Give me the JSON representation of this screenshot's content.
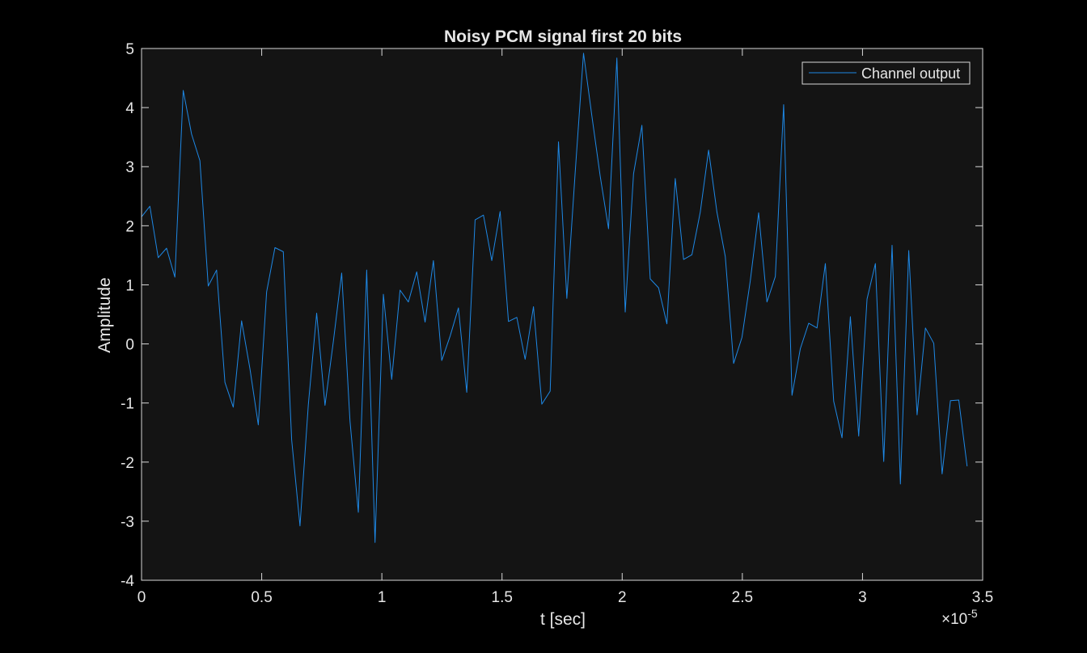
{
  "chart_data": {
    "type": "line",
    "title": "Noisy PCM signal first 20 bits",
    "xlabel": "t [sec]",
    "ylabel": "Amplitude",
    "x_exponent_label": "×10",
    "x_exponent_power": "-5",
    "x_scale": 1e-05,
    "xlim": [
      0,
      3.5
    ],
    "ylim": [
      -4,
      5
    ],
    "x_ticks": [
      0,
      0.5,
      1,
      1.5,
      2,
      2.5,
      3,
      3.5
    ],
    "x_tick_labels": [
      "0",
      "0.5",
      "1",
      "1.5",
      "2",
      "2.5",
      "3",
      "3.5"
    ],
    "y_ticks": [
      -4,
      -3,
      -2,
      -1,
      0,
      1,
      2,
      3,
      4,
      5
    ],
    "y_tick_labels": [
      "-4",
      "-3",
      "-2",
      "-1",
      "0",
      "1",
      "2",
      "3",
      "4",
      "5"
    ],
    "grid": false,
    "legend_position": "top-right",
    "colors": {
      "figure_background": "#000000",
      "axes_background": "#141414",
      "axes_edge": "#d9d9d9",
      "text": "#e6e6e6",
      "line": "#1e88e5"
    },
    "series": [
      {
        "name": "Channel output",
        "x": [
          0,
          0.0347,
          0.0694,
          0.1041,
          0.1388,
          0.1735,
          0.2082,
          0.2429,
          0.2776,
          0.3123,
          0.347,
          0.3817,
          0.4164,
          0.4511,
          0.4858,
          0.5205,
          0.5552,
          0.5899,
          0.6246,
          0.6593,
          0.694,
          0.7287,
          0.7634,
          0.7981,
          0.8328,
          0.8675,
          0.9022,
          0.9369,
          0.9716,
          1.0063,
          1.041,
          1.0757,
          1.1104,
          1.1451,
          1.1798,
          1.2145,
          1.2492,
          1.2839,
          1.3186,
          1.3533,
          1.388,
          1.4227,
          1.4574,
          1.4921,
          1.5268,
          1.5615,
          1.5962,
          1.6309,
          1.6656,
          1.7003,
          1.735,
          1.7697,
          1.8044,
          1.8391,
          1.8738,
          1.9085,
          1.9432,
          1.9779,
          2.0126,
          2.0473,
          2.082,
          2.1167,
          2.1514,
          2.1861,
          2.2208,
          2.2555,
          2.2902,
          2.3249,
          2.3596,
          2.3943,
          2.429,
          2.4637,
          2.4984,
          2.5331,
          2.5678,
          2.6025,
          2.6372,
          2.6719,
          2.7066,
          2.7413,
          2.776,
          2.8107,
          2.8454,
          2.8801,
          2.9148,
          2.9495,
          2.9842,
          3.0189,
          3.0536,
          3.0883,
          3.123,
          3.1577,
          3.1924,
          3.2271,
          3.2618,
          3.2965,
          3.3312,
          3.3659,
          3.4006,
          3.4353
        ],
        "y": [
          2.15,
          2.33,
          1.46,
          1.62,
          1.13,
          4.29,
          3.55,
          3.1,
          0.98,
          1.25,
          -0.65,
          -1.07,
          0.39,
          -0.42,
          -1.37,
          0.88,
          1.63,
          1.56,
          -1.62,
          -3.08,
          -1.03,
          0.52,
          -1.04,
          0.04,
          1.2,
          -1.31,
          -2.85,
          1.25,
          -3.36,
          0.84,
          -0.6,
          0.91,
          0.71,
          1.22,
          0.37,
          1.41,
          -0.28,
          0.13,
          0.61,
          -0.82,
          2.1,
          2.18,
          1.41,
          2.24,
          0.38,
          0.45,
          -0.26,
          0.63,
          -1.02,
          -0.8,
          3.42,
          0.77,
          2.9,
          4.92,
          3.86,
          2.84,
          1.95,
          4.84,
          0.54,
          2.88,
          3.7,
          1.1,
          0.95,
          0.34,
          2.8,
          1.43,
          1.51,
          2.23,
          3.28,
          2.23,
          1.48,
          -0.33,
          0.11,
          1.07,
          2.22,
          0.71,
          1.14,
          4.05,
          -0.87,
          -0.08,
          0.35,
          0.27,
          1.36,
          -0.97,
          -1.59,
          0.46,
          -1.56,
          0.76,
          1.36,
          -1.99,
          1.67,
          -2.37,
          1.58,
          -1.2,
          0.27,
          0.01,
          -2.2,
          -0.96,
          -0.95,
          -2.07
        ]
      }
    ]
  }
}
